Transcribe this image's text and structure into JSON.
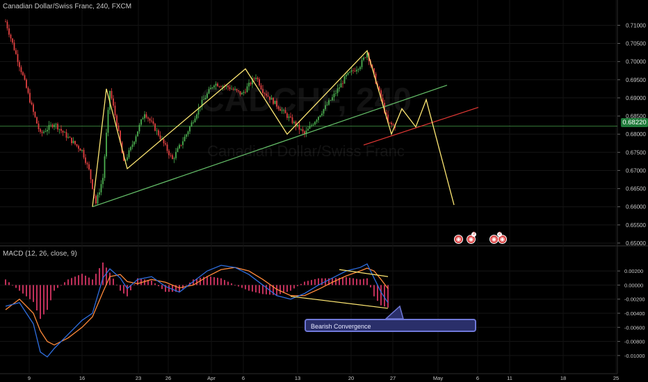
{
  "header": {
    "symbol_line": "Canadian Dollar/Swiss Franc, 240, FXCM",
    "macd_label": "MACD (12, 26, close, 9)"
  },
  "watermark": {
    "ticker": "CADCHF, 240",
    "name": "Canadian Dollar/Swiss Franc"
  },
  "price_tag": "0.68220",
  "callout": {
    "text": "Bearish Convergence"
  },
  "event_icons": [
    "currency-event-icon",
    "currency-event-icon",
    "currency-event-icon",
    "currency-event-icon"
  ],
  "colors": {
    "background": "#000000",
    "bull_candle": "#4caf50",
    "bear_candle": "#e04040",
    "pattern_line": "#ffe873",
    "trendline_green": "#67c36b",
    "trendline_red": "#e53935",
    "macd_line": "#2f6fe0",
    "signal_line": "#ff8a3a",
    "histogram": "#c0305a",
    "callout_fill": "#2a2f6a",
    "callout_border": "#6f78d8"
  },
  "chart_data": [
    {
      "type": "candlestick",
      "title": "Canadian Dollar/Swiss Franc, 240, FXCM",
      "x_ticks": [
        "9",
        "16",
        "23",
        "26",
        "Apr",
        "6",
        "13",
        "20",
        "27",
        "May",
        "6",
        "11",
        "18",
        "25"
      ],
      "y_ticks": [
        "0.71000",
        "0.70500",
        "0.70000",
        "0.69500",
        "0.69000",
        "0.68500",
        "0.68000",
        "0.67500",
        "0.67000",
        "0.66500",
        "0.66000",
        "0.65500",
        "0.65000"
      ],
      "ylim": [
        0.6498,
        0.7118
      ],
      "last_price": 0.6822,
      "price_path": [
        [
          0,
          0.711
        ],
        [
          2,
          0.705
        ],
        [
          5,
          0.696
        ],
        [
          8,
          0.686
        ],
        [
          10,
          0.68
        ],
        [
          14,
          0.683
        ],
        [
          18,
          0.679
        ],
        [
          22,
          0.6755
        ],
        [
          24,
          0.67
        ],
        [
          26,
          0.661
        ],
        [
          28,
          0.668
        ],
        [
          30,
          0.692
        ],
        [
          32,
          0.683
        ],
        [
          34,
          0.672
        ],
        [
          36,
          0.676
        ],
        [
          40,
          0.686
        ],
        [
          44,
          0.68
        ],
        [
          48,
          0.673
        ],
        [
          52,
          0.68
        ],
        [
          56,
          0.688
        ],
        [
          60,
          0.694
        ],
        [
          64,
          0.693
        ],
        [
          68,
          0.691
        ],
        [
          72,
          0.696
        ],
        [
          74,
          0.692
        ],
        [
          78,
          0.688
        ],
        [
          82,
          0.684
        ],
        [
          86,
          0.68
        ],
        [
          90,
          0.685
        ],
        [
          94,
          0.69
        ],
        [
          98,
          0.696
        ],
        [
          102,
          0.699
        ],
        [
          104,
          0.7025
        ],
        [
          106,
          0.696
        ],
        [
          108,
          0.69
        ],
        [
          110,
          0.683
        ],
        [
          112,
          0.6822
        ]
      ],
      "pattern_projection": [
        [
          25,
          0.66
        ],
        [
          29,
          0.6925
        ],
        [
          35,
          0.6705
        ],
        [
          69,
          0.698
        ],
        [
          81,
          0.68
        ],
        [
          104,
          0.703
        ],
        [
          111,
          0.68
        ],
        [
          114,
          0.687
        ],
        [
          118,
          0.682
        ],
        [
          121,
          0.6895
        ],
        [
          129,
          0.6605
        ]
      ],
      "trendlines": [
        {
          "color": "green",
          "from": [
            25,
            0.66
          ],
          "to": [
            127,
            0.6935
          ]
        },
        {
          "color": "red",
          "from": [
            103,
            0.677
          ],
          "to": [
            136,
            0.6874
          ]
        }
      ]
    },
    {
      "type": "line",
      "title": "MACD (12, 26, close, 9)",
      "y_ticks": [
        "0.00200",
        "0.00000",
        "-0.00200",
        "-0.00400",
        "-0.00600",
        "-0.00800",
        "-0.01000"
      ],
      "ylim": [
        -0.0108,
        0.003
      ],
      "series": [
        {
          "name": "MACD",
          "values": [
            [
              0,
              -0.003
            ],
            [
              4,
              -0.0025
            ],
            [
              8,
              -0.0055
            ],
            [
              10,
              -0.0095
            ],
            [
              12,
              -0.0102
            ],
            [
              14,
              -0.009
            ],
            [
              18,
              -0.007
            ],
            [
              22,
              -0.005
            ],
            [
              25,
              -0.004
            ],
            [
              28,
              0.001
            ],
            [
              30,
              0.0023
            ],
            [
              33,
              0.001
            ],
            [
              35,
              -0.0005
            ],
            [
              38,
              0.0008
            ],
            [
              42,
              0.0012
            ],
            [
              46,
              -0.0002
            ],
            [
              50,
              -0.001
            ],
            [
              54,
              0.0005
            ],
            [
              58,
              0.002
            ],
            [
              62,
              0.0028
            ],
            [
              66,
              0.0025
            ],
            [
              70,
              0.0015
            ],
            [
              74,
              0.0
            ],
            [
              78,
              -0.0015
            ],
            [
              82,
              -0.002
            ],
            [
              86,
              -0.0012
            ],
            [
              90,
              0.0
            ],
            [
              94,
              0.001
            ],
            [
              98,
              0.002
            ],
            [
              102,
              0.0025
            ],
            [
              104,
              0.003
            ],
            [
              106,
              0.001
            ],
            [
              108,
              -0.001
            ],
            [
              110,
              -0.0025
            ]
          ]
        },
        {
          "name": "Signal",
          "values": [
            [
              0,
              -0.0035
            ],
            [
              4,
              -0.002
            ],
            [
              8,
              -0.004
            ],
            [
              10,
              -0.0065
            ],
            [
              12,
              -0.008
            ],
            [
              14,
              -0.0085
            ],
            [
              18,
              -0.0075
            ],
            [
              22,
              -0.006
            ],
            [
              25,
              -0.0045
            ],
            [
              28,
              -0.001
            ],
            [
              30,
              0.0012
            ],
            [
              33,
              0.0015
            ],
            [
              35,
              0.0005
            ],
            [
              38,
              0.0002
            ],
            [
              42,
              0.0008
            ],
            [
              46,
              0.0004
            ],
            [
              50,
              -0.0004
            ],
            [
              54,
              0.0
            ],
            [
              58,
              0.0012
            ],
            [
              62,
              0.0022
            ],
            [
              66,
              0.0025
            ],
            [
              70,
              0.002
            ],
            [
              74,
              0.0008
            ],
            [
              78,
              -0.0006
            ],
            [
              82,
              -0.0015
            ],
            [
              86,
              -0.0015
            ],
            [
              90,
              -0.0006
            ],
            [
              94,
              0.0004
            ],
            [
              98,
              0.0013
            ],
            [
              102,
              0.002
            ],
            [
              104,
              0.0024
            ],
            [
              106,
              0.002
            ],
            [
              108,
              0.0008
            ],
            [
              110,
              -0.0005
            ]
          ]
        }
      ],
      "divergence_lines": [
        {
          "from": [
            96,
            0.0022
          ],
          "to": [
            110,
            0.0012
          ]
        },
        {
          "from": [
            82,
            -0.0016
          ],
          "to": [
            110,
            -0.0033
          ]
        }
      ]
    }
  ]
}
